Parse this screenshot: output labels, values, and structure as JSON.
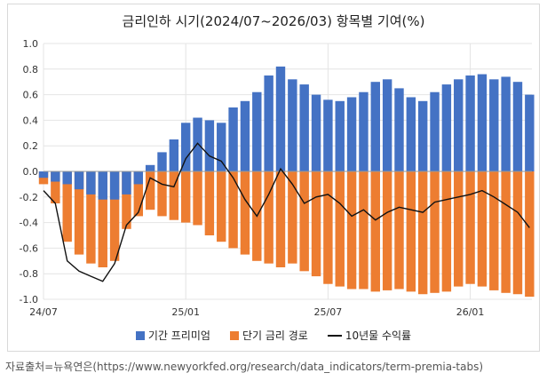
{
  "chart_data": {
    "type": "bar",
    "title": "금리인하 시기(2024/07~2026/03) 항목별 기여(%)",
    "ylim": [
      -1.0,
      1.0
    ],
    "yticks": [
      "1.0",
      "0.8",
      "0.6",
      "0.4",
      "0.2",
      "0.0",
      "-0.2",
      "-0.4",
      "-0.6",
      "-0.8",
      "-1.0"
    ],
    "ytick_values": [
      1.0,
      0.8,
      0.6,
      0.4,
      0.2,
      0.0,
      -0.2,
      -0.4,
      -0.6,
      -0.8,
      -1.0
    ],
    "xticks": [
      "24/07",
      "25/01",
      "25/07",
      "26/01"
    ],
    "xtick_months": [
      0,
      6,
      12,
      18
    ],
    "xlim_months": [
      0,
      20.6
    ],
    "grid": true,
    "legend_position": "bottom",
    "colors": {
      "term_premium": "#4472C4",
      "short_rate_path": "#ED7D31",
      "yield_10y": "#111111"
    },
    "series": [
      {
        "name": "기간 프리미엄",
        "kind": "bar",
        "x_months": [
          0.0,
          0.5,
          1.0,
          1.5,
          2.0,
          2.5,
          3.0,
          3.5,
          4.0,
          4.5,
          5.0,
          5.5,
          6.0,
          6.5,
          7.0,
          7.5,
          8.0,
          8.5,
          9.0,
          9.5,
          10.0,
          10.5,
          11.0,
          11.5,
          12.0,
          12.5,
          13.0,
          13.5,
          14.0,
          14.5,
          15.0,
          15.5,
          16.0,
          16.5,
          17.0,
          17.5,
          18.0,
          18.5,
          19.0,
          19.5,
          20.0,
          20.5
        ],
        "values": [
          -0.05,
          -0.08,
          -0.1,
          -0.14,
          -0.18,
          -0.22,
          -0.22,
          -0.18,
          -0.1,
          0.05,
          0.15,
          0.25,
          0.38,
          0.42,
          0.4,
          0.38,
          0.5,
          0.55,
          0.62,
          0.75,
          0.82,
          0.72,
          0.68,
          0.6,
          0.56,
          0.55,
          0.58,
          0.62,
          0.7,
          0.72,
          0.65,
          0.58,
          0.55,
          0.62,
          0.68,
          0.72,
          0.75,
          0.76,
          0.72,
          0.74,
          0.7,
          0.6
        ]
      },
      {
        "name": "단기 금리 경로",
        "kind": "bar",
        "x_months": [
          0.0,
          0.5,
          1.0,
          1.5,
          2.0,
          2.5,
          3.0,
          3.5,
          4.0,
          4.5,
          5.0,
          5.5,
          6.0,
          6.5,
          7.0,
          7.5,
          8.0,
          8.5,
          9.0,
          9.5,
          10.0,
          10.5,
          11.0,
          11.5,
          12.0,
          12.5,
          13.0,
          13.5,
          14.0,
          14.5,
          15.0,
          15.5,
          16.0,
          16.5,
          17.0,
          17.5,
          18.0,
          18.5,
          19.0,
          19.5,
          20.0,
          20.5
        ],
        "values": [
          -0.1,
          -0.25,
          -0.55,
          -0.65,
          -0.72,
          -0.75,
          -0.7,
          -0.45,
          -0.35,
          -0.3,
          -0.35,
          -0.38,
          -0.4,
          -0.42,
          -0.5,
          -0.55,
          -0.6,
          -0.65,
          -0.7,
          -0.72,
          -0.75,
          -0.72,
          -0.78,
          -0.82,
          -0.88,
          -0.9,
          -0.92,
          -0.92,
          -0.94,
          -0.93,
          -0.92,
          -0.94,
          -0.96,
          -0.95,
          -0.94,
          -0.9,
          -0.88,
          -0.9,
          -0.93,
          -0.95,
          -0.96,
          -0.98
        ]
      },
      {
        "name": "10년물 수익률",
        "kind": "line",
        "x_months": [
          0.0,
          0.5,
          1.0,
          1.5,
          2.0,
          2.5,
          3.0,
          3.5,
          4.0,
          4.5,
          5.0,
          5.5,
          6.0,
          6.5,
          7.0,
          7.5,
          8.0,
          8.5,
          9.0,
          9.5,
          10.0,
          10.5,
          11.0,
          11.5,
          12.0,
          12.5,
          13.0,
          13.5,
          14.0,
          14.5,
          15.0,
          15.5,
          16.0,
          16.5,
          17.0,
          17.5,
          18.0,
          18.5,
          19.0,
          19.5,
          20.0,
          20.5
        ],
        "values": [
          -0.15,
          -0.25,
          -0.7,
          -0.78,
          -0.82,
          -0.86,
          -0.72,
          -0.42,
          -0.32,
          -0.05,
          -0.1,
          -0.12,
          0.1,
          0.22,
          0.12,
          0.08,
          -0.05,
          -0.22,
          -0.35,
          -0.18,
          0.02,
          -0.1,
          -0.25,
          -0.2,
          -0.18,
          -0.25,
          -0.35,
          -0.3,
          -0.38,
          -0.32,
          -0.28,
          -0.3,
          -0.32,
          -0.24,
          -0.22,
          -0.2,
          -0.18,
          -0.15,
          -0.2,
          -0.26,
          -0.32,
          -0.44
        ]
      }
    ]
  },
  "legend": {
    "term_premium": "기간 프리미엄",
    "short_rate_path": "단기 금리 경로",
    "yield_10y": "10년물 수익률"
  },
  "source": "자료출처=뉴욕연은(https://www.newyorkfed.org/research/data_indicators/term-premia-tabs)"
}
